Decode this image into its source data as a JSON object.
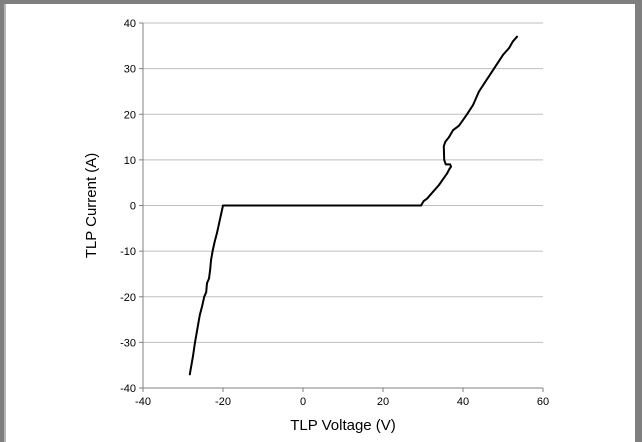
{
  "chart_data": {
    "type": "line",
    "title": "",
    "xlabel": "TLP Voltage (V)",
    "ylabel": "TLP Current (A)",
    "xlim": [
      -40,
      60
    ],
    "ylim": [
      -40,
      40
    ],
    "xticks": [
      -40,
      -20,
      0,
      20,
      40,
      60
    ],
    "yticks": [
      -40,
      -30,
      -20,
      -10,
      0,
      10,
      20,
      30,
      40
    ],
    "grid": "horizontal",
    "legend": "none",
    "colors": {
      "line": "#000000",
      "grid": "#bfbfbf",
      "axis": "#808080",
      "background": "#7f7f7f",
      "plot_background": "#ffffff"
    },
    "series": [
      {
        "x": [
          -28.3,
          -28.0,
          -27.5,
          -27.0,
          -26.6,
          -26.2,
          -25.8,
          -25.2,
          -24.7,
          -24.2,
          -24.0,
          -23.5,
          -23.2,
          -23.0,
          -22.6,
          -22.1,
          -21.5,
          -21.0,
          -20.5,
          -20.0,
          -19.3,
          -18.9,
          0,
          15,
          29.5,
          30.2,
          31.0,
          32.5,
          34.0,
          35.2,
          36.0,
          36.6,
          37.0,
          36.8,
          35.7,
          35.3,
          35.2,
          35.6,
          36.5,
          37.5,
          39.0,
          41.0,
          42.5,
          44.0,
          45.5,
          47.0,
          48.5,
          50.0,
          51.5,
          52.5,
          53.5
        ],
        "y": [
          -37,
          -35.5,
          -33,
          -30,
          -28,
          -26,
          -24,
          -22,
          -20,
          -19,
          -17,
          -16,
          -14,
          -12,
          -10,
          -8,
          -6,
          -4,
          -2,
          0,
          0,
          0,
          0,
          0,
          0,
          1,
          1.5,
          3,
          4.5,
          6,
          7,
          8,
          8.5,
          9,
          9,
          10,
          13,
          14,
          15,
          16.5,
          17.5,
          20,
          22,
          25,
          27,
          29,
          31,
          33,
          34.5,
          36,
          37
        ]
      }
    ]
  }
}
